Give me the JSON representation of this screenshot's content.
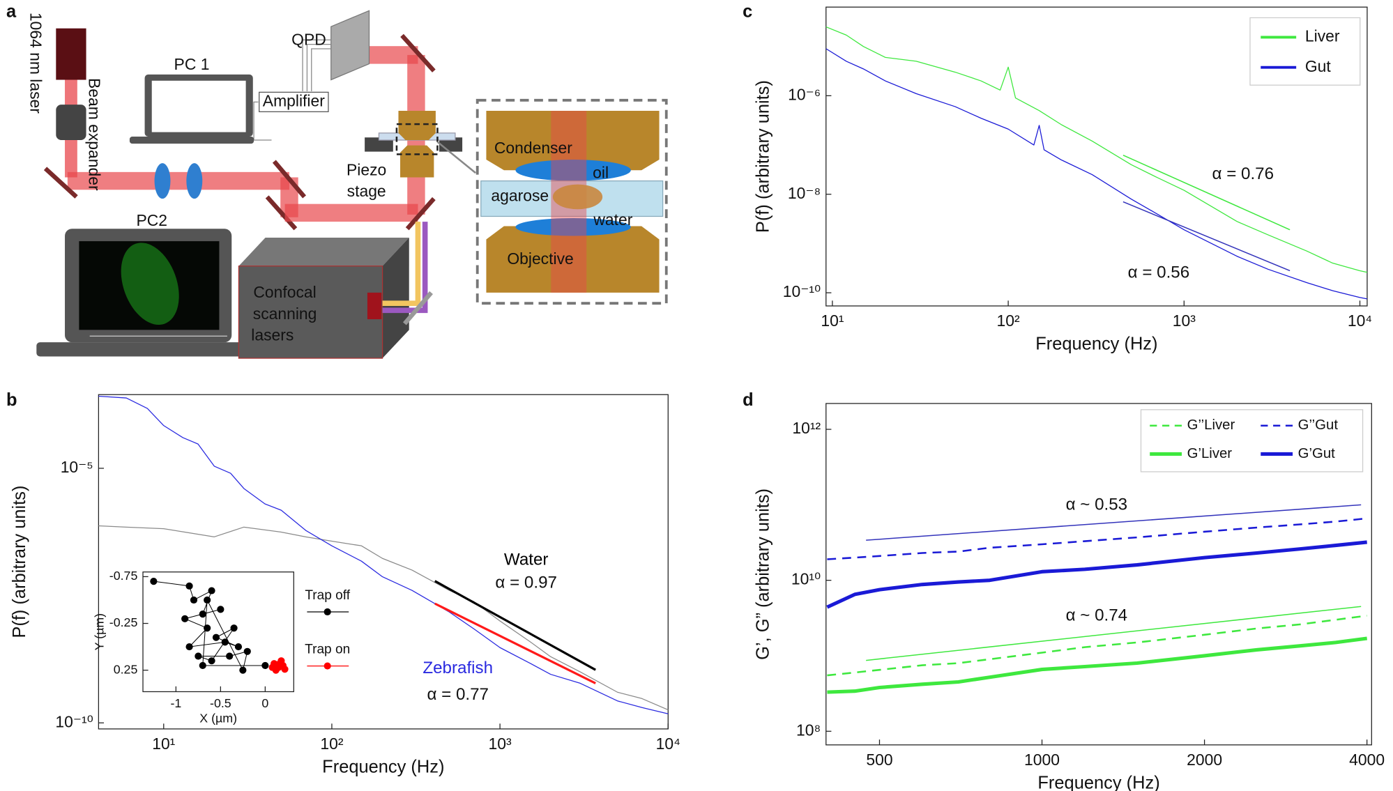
{
  "diagram": {
    "panel_labels": [
      "a",
      "b",
      "c",
      "d"
    ],
    "setup": {
      "laser": "1064 nm laser",
      "beam_expander": "Beam expander",
      "pc1": "PC 1",
      "qpd": "QPD",
      "amplifier": "Amplifier",
      "piezo_stage": [
        "Piezo",
        "stage"
      ],
      "condenser": "Condenser",
      "oil": "oil",
      "agarose": "agarose",
      "water": "water",
      "objective": "Objective",
      "pc2": "PC2",
      "confocal": [
        "Confocal",
        "scanning",
        "lasers"
      ]
    }
  },
  "chart_data": [
    {
      "type": "line",
      "xscale": "log",
      "yscale": "log",
      "xlabel": "Frequency (Hz)",
      "ylabel": "P(f) (arbitrary units)",
      "xlim": [
        4.1,
        10000
      ],
      "ylim": [
        7.6e-11,
        0.00028
      ],
      "xticks": [
        {
          "value": 10,
          "label": "10¹"
        },
        {
          "value": 100,
          "label": "10²"
        },
        {
          "value": 1000,
          "label": "10³"
        },
        {
          "value": 10000,
          "label": "10⁴"
        }
      ],
      "yticks": [
        {
          "value": 1e-10,
          "label": "10⁻¹⁰"
        },
        {
          "value": 1e-05,
          "label": "10⁻⁵"
        }
      ],
      "series": [
        {
          "name": "Water",
          "color": "#8a8a8a",
          "label_color": "#000000",
          "x": [
            4.1,
            6,
            10,
            20,
            30,
            50,
            70,
            100,
            150,
            200,
            300,
            500,
            700,
            1000,
            1500,
            2000,
            3000,
            5000,
            7000,
            10000
          ],
          "values": [
            7.4e-07,
            7e-07,
            6.5e-07,
            4.5e-07,
            7e-07,
            5.6e-07,
            4.5e-07,
            3.7e-07,
            3e-07,
            1.7e-07,
            1e-07,
            4e-08,
            2.4e-08,
            1e-08,
            4e-09,
            2e-09,
            1e-09,
            4e-10,
            3e-10,
            1.8e-10
          ]
        },
        {
          "name": "Zebrafish",
          "color": "#2a2ae0",
          "label_color": "#2a2ae0",
          "x": [
            4.1,
            6,
            8,
            10,
            13,
            16,
            20,
            25,
            30,
            40,
            50,
            70,
            100,
            150,
            200,
            300,
            500,
            700,
            1000,
            1500,
            2000,
            3000,
            5000,
            7000,
            10000
          ],
          "values": [
            0.00026,
            0.00024,
            0.00015,
            6.9e-05,
            4e-05,
            3e-05,
            1.1e-05,
            8e-06,
            4e-06,
            2e-06,
            1.5e-06,
            6e-07,
            3e-07,
            1.5e-07,
            7.4e-08,
            4e-08,
            1.5e-08,
            7e-09,
            3e-09,
            1.5e-09,
            9e-10,
            6e-10,
            2.7e-10,
            2e-10,
            1.5e-10
          ]
        }
      ],
      "fits": [
        {
          "color": "#000000",
          "x": [
            410,
            3700
          ],
          "values": [
            6.1e-08,
            1.1e-09
          ]
        },
        {
          "color": "#ff1a1a",
          "x": [
            410,
            3700
          ],
          "values": [
            2.2e-08,
            6e-10
          ]
        }
      ],
      "annotations": [
        "α = 0.97",
        "α = 0.77"
      ]
    },
    {
      "type": "scatter",
      "xlabel": "X (µm)",
      "ylabel": "Y (µm)",
      "xlim": [
        -1.37,
        0.32
      ],
      "ylim": [
        -0.8,
        0.48
      ],
      "y_inverted": true,
      "legend": "right",
      "xticks": [
        -1,
        -0.5,
        0
      ],
      "yticks": [
        -0.75,
        -0.25,
        0.25
      ],
      "series": [
        {
          "name": "Trap off",
          "color": "#000000",
          "connected": true,
          "x": [
            -1.25,
            -0.85,
            -0.8,
            -0.6,
            -0.7,
            -0.5,
            -0.9,
            -0.65,
            -0.85,
            -0.45,
            -0.3,
            -0.55,
            -0.35,
            -0.6,
            -0.75,
            -0.4,
            -0.2,
            -0.25,
            -0.65,
            -0.7,
            0.0
          ],
          "values": [
            -0.7,
            -0.65,
            -0.5,
            -0.6,
            -0.35,
            -0.4,
            -0.3,
            -0.2,
            0.0,
            -0.05,
            0.0,
            -0.1,
            -0.2,
            0.15,
            0.1,
            0.1,
            0.05,
            0.25,
            -0.5,
            0.2,
            0.2
          ]
        },
        {
          "name": "Trap on",
          "color": "#ff0000",
          "connected": false,
          "x": [
            0.1,
            0.15,
            0.2,
            0.12,
            0.18,
            0.22,
            0.08,
            0.14
          ],
          "values": [
            0.18,
            0.22,
            0.2,
            0.25,
            0.15,
            0.24,
            0.22,
            0.19
          ]
        }
      ]
    },
    {
      "type": "line",
      "xscale": "log",
      "yscale": "log",
      "xlabel": "Frequency (Hz)",
      "ylabel": "P(f) (arbitrary units)",
      "legend": "upper right",
      "xlim": [
        9.2,
        11000
      ],
      "ylim": [
        5.4e-11,
        6.3e-05
      ],
      "xticks": [
        {
          "value": 10,
          "label": "10¹"
        },
        {
          "value": 100,
          "label": "10²"
        },
        {
          "value": 1000,
          "label": "10³"
        },
        {
          "value": 10000,
          "label": "10⁴"
        }
      ],
      "yticks": [
        {
          "value": 1e-10,
          "label": "10⁻¹⁰"
        },
        {
          "value": 1e-08,
          "label": "10⁻⁸"
        },
        {
          "value": 1e-06,
          "label": "10⁻⁶"
        }
      ],
      "series": [
        {
          "name": "Liver",
          "color": "#3ee83e",
          "x": [
            9.2,
            12,
            15,
            20,
            30,
            50,
            70,
            90,
            100,
            110,
            150,
            200,
            300,
            500,
            700,
            1000,
            2000,
            3000,
            5000,
            7000,
            10000,
            11000
          ],
          "values": [
            2.5e-05,
            1.7e-05,
            1e-05,
            6e-06,
            5e-06,
            3e-06,
            2e-06,
            1.3e-06,
            3.8e-06,
            9e-07,
            5e-07,
            2.6e-07,
            1.2e-07,
            4e-08,
            2.2e-08,
            1.2e-08,
            2.8e-09,
            1.5e-09,
            7e-10,
            4e-10,
            2.8e-10,
            2.6e-10
          ]
        },
        {
          "name": "Gut",
          "color": "#1a1ad6",
          "x": [
            9.2,
            12,
            15,
            20,
            30,
            50,
            70,
            100,
            140,
            150,
            160,
            200,
            300,
            500,
            700,
            1000,
            2000,
            3000,
            5000,
            7000,
            10000,
            11000
          ],
          "values": [
            9e-06,
            5e-06,
            3.5e-06,
            2e-06,
            1.1e-06,
            6e-07,
            3.5e-07,
            2.1e-07,
            1e-07,
            2.5e-07,
            8e-08,
            5e-08,
            2.5e-08,
            8e-09,
            4e-09,
            1.9e-09,
            5.5e-10,
            3e-10,
            1.6e-10,
            1.1e-10,
            8e-11,
            7.5e-11
          ]
        }
      ],
      "fits": [
        {
          "color": "#3ee83e",
          "x": [
            450,
            4000
          ],
          "values": [
            6.2e-08,
            1.9e-09
          ]
        },
        {
          "color": "#3333bb",
          "x": [
            450,
            4000
          ],
          "values": [
            7e-09,
            2.8e-10
          ]
        }
      ],
      "annotations": [
        "α = 0.76",
        "α = 0.56"
      ]
    },
    {
      "type": "line",
      "xscale": "log",
      "yscale": "log",
      "xlabel": "Frequency (Hz)",
      "ylabel": "G’, G” (arbitrary units)",
      "legend": "upper right",
      "xlim": [
        398,
        4080
      ],
      "ylim": [
        66000000.0,
        2200000000000.0
      ],
      "xticks": [
        500,
        1000,
        2000,
        4000
      ],
      "yticks": [
        {
          "value": 100000000.0,
          "label": "10⁸"
        },
        {
          "value": 10000000000.0,
          "label": "10¹⁰"
        },
        {
          "value": 1000000000000.0,
          "label": "10¹²"
        }
      ],
      "x": [
        400,
        450,
        500,
        600,
        700,
        800,
        1000,
        1200,
        1500,
        2000,
        2500,
        3000,
        3500,
        4000
      ],
      "series": [
        {
          "name": "G’’Liver",
          "color": "#3ee83e",
          "linestyle": "dashed",
          "linewidth": 2,
          "values": [
            550000000.0,
            600000000.0,
            650000000.0,
            750000000.0,
            800000000.0,
            900000000.0,
            1100000000.0,
            1300000000.0,
            1500000000.0,
            1900000000.0,
            2300000000.0,
            2600000000.0,
            3000000000.0,
            3400000000.0
          ]
        },
        {
          "name": "G’’Gut",
          "color": "#1a1ad6",
          "linestyle": "dashed",
          "linewidth": 2,
          "values": [
            19000000000.0,
            20000000000.0,
            21000000000.0,
            23000000000.0,
            24000000000.0,
            27000000000.0,
            30000000000.0,
            33000000000.0,
            37000000000.0,
            44000000000.0,
            50000000000.0,
            55000000000.0,
            60000000000.0,
            66000000000.0
          ]
        },
        {
          "name": "G’Liver",
          "color": "#3ee83e",
          "linestyle": "solid",
          "linewidth": 4,
          "values": [
            330000000.0,
            340000000.0,
            380000000.0,
            420000000.0,
            450000000.0,
            520000000.0,
            660000000.0,
            720000000.0,
            800000000.0,
            1000000000.0,
            1200000000.0,
            1350000000.0,
            1500000000.0,
            1700000000.0
          ]
        },
        {
          "name": "G’Gut",
          "color": "#1a1ad6",
          "linestyle": "solid",
          "linewidth": 4,
          "values": [
            4400000000.0,
            6500000000.0,
            7500000000.0,
            8800000000.0,
            9500000000.0,
            10000000000.0,
            13000000000.0,
            14000000000.0,
            16000000000.0,
            20000000000.0,
            23000000000.0,
            26000000000.0,
            29000000000.0,
            32000000000.0
          ]
        }
      ],
      "fits": [
        {
          "color": "#3333bb",
          "x": [
            472,
            3900
          ],
          "values": [
            34000000000.0,
            100000000000.0
          ]
        },
        {
          "color": "#3ee83e",
          "x": [
            472,
            3900
          ],
          "values": [
            870000000.0,
            4500000000.0
          ]
        }
      ],
      "annotations": [
        "α ~ 0.53",
        "α ~ 0.74"
      ]
    }
  ]
}
